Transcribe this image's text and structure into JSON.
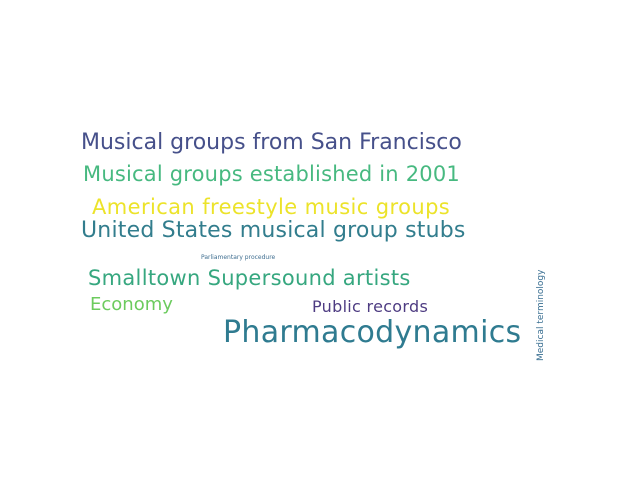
{
  "words": [
    {
      "text": "Musical groups from San Francisco",
      "color": "#46508a"
    },
    {
      "text": "Musical groups established in 2001",
      "color": "#47b980"
    },
    {
      "text": "American freestyle music groups",
      "color": "#ece32a"
    },
    {
      "text": "United States musical group stubs",
      "color": "#327d8d"
    },
    {
      "text": "Parliamentary procedure",
      "color": "#3f6e90"
    },
    {
      "text": "Smalltown Supersound artists",
      "color": "#36a77f"
    },
    {
      "text": "Economy",
      "color": "#6ccb5e"
    },
    {
      "text": "Public records",
      "color": "#4e3c82"
    },
    {
      "text": "Pharmacodynamics",
      "color": "#2f7b90"
    },
    {
      "text": "Medical terminology",
      "color": "#3a6f92"
    }
  ]
}
